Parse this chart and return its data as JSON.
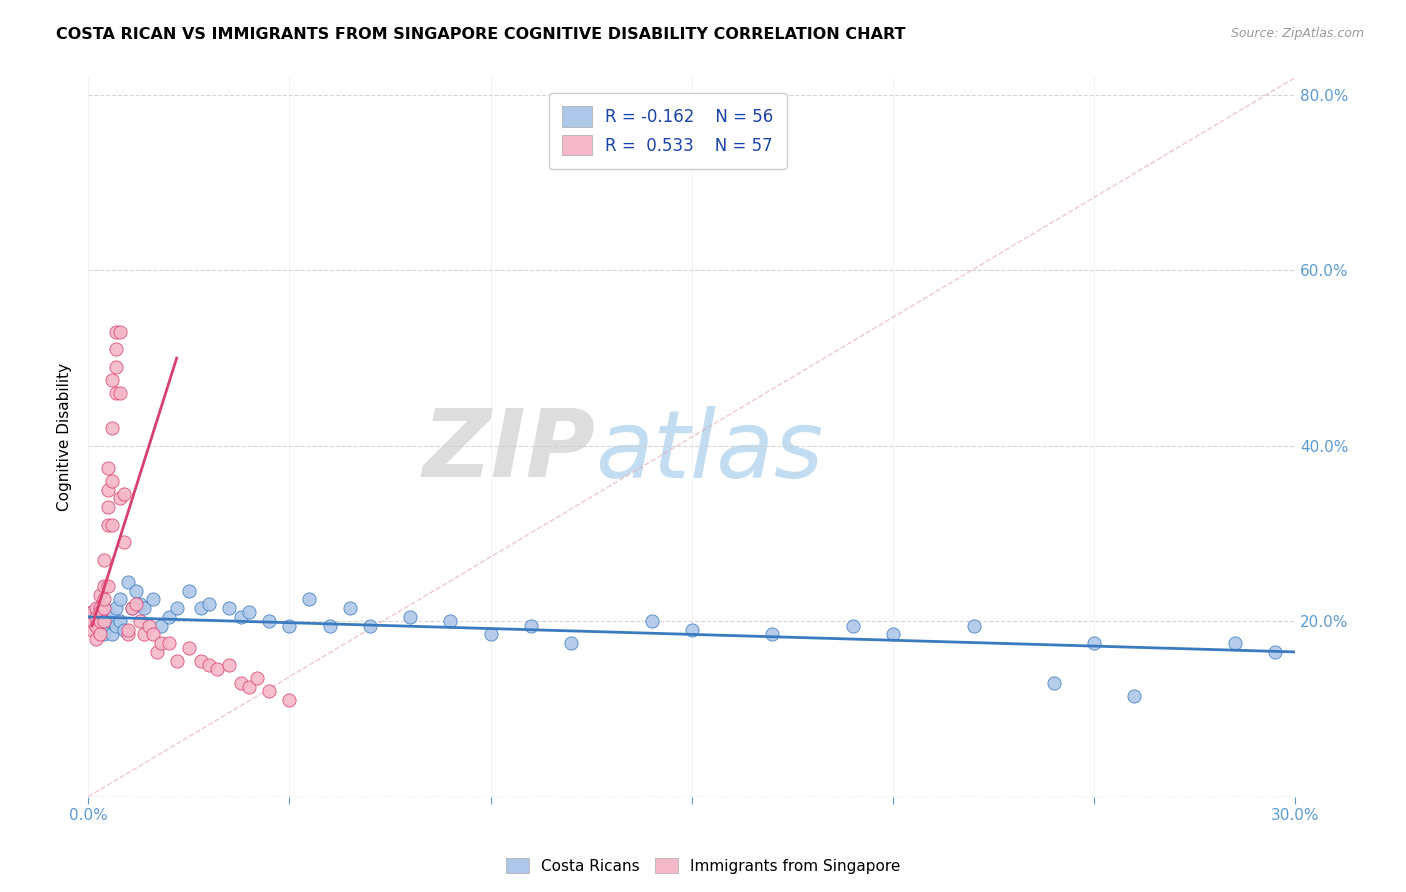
{
  "title": "COSTA RICAN VS IMMIGRANTS FROM SINGAPORE COGNITIVE DISABILITY CORRELATION CHART",
  "source": "Source: ZipAtlas.com",
  "ylabel": "Cognitive Disability",
  "xmin": 0.0,
  "xmax": 0.3,
  "ymin": 0.0,
  "ymax": 0.82,
  "yticks": [
    0.0,
    0.2,
    0.4,
    0.6,
    0.8
  ],
  "ytick_labels": [
    "",
    "20.0%",
    "40.0%",
    "60.0%",
    "80.0%"
  ],
  "xticks": [
    0.0,
    0.05,
    0.1,
    0.15,
    0.2,
    0.25,
    0.3
  ],
  "xtick_labels": [
    "0.0%",
    "",
    "",
    "",
    "",
    "",
    "30.0%"
  ],
  "blue_color": "#adc8e8",
  "pink_color": "#f5b8c8",
  "blue_line_color": "#3a7abf",
  "pink_line_color": "#d94070",
  "legend_blue_R": "R = -0.162",
  "legend_blue_N": "N = 56",
  "legend_pink_R": "R =  0.533",
  "legend_pink_N": "N = 57",
  "blue_scatter_x": [
    0.001,
    0.002,
    0.002,
    0.003,
    0.003,
    0.003,
    0.004,
    0.004,
    0.004,
    0.005,
    0.005,
    0.005,
    0.006,
    0.006,
    0.007,
    0.007,
    0.008,
    0.008,
    0.009,
    0.01,
    0.011,
    0.012,
    0.013,
    0.014,
    0.016,
    0.018,
    0.02,
    0.022,
    0.025,
    0.028,
    0.03,
    0.035,
    0.038,
    0.04,
    0.045,
    0.05,
    0.055,
    0.06,
    0.065,
    0.07,
    0.08,
    0.09,
    0.1,
    0.11,
    0.12,
    0.14,
    0.15,
    0.17,
    0.19,
    0.2,
    0.22,
    0.24,
    0.25,
    0.26,
    0.285,
    0.295
  ],
  "blue_scatter_y": [
    0.21,
    0.205,
    0.195,
    0.2,
    0.19,
    0.215,
    0.185,
    0.2,
    0.215,
    0.195,
    0.21,
    0.2,
    0.185,
    0.205,
    0.215,
    0.195,
    0.225,
    0.2,
    0.19,
    0.245,
    0.215,
    0.235,
    0.22,
    0.215,
    0.225,
    0.195,
    0.205,
    0.215,
    0.235,
    0.215,
    0.22,
    0.215,
    0.205,
    0.21,
    0.2,
    0.195,
    0.225,
    0.195,
    0.215,
    0.195,
    0.205,
    0.2,
    0.185,
    0.195,
    0.175,
    0.2,
    0.19,
    0.185,
    0.195,
    0.185,
    0.195,
    0.13,
    0.175,
    0.115,
    0.175,
    0.165
  ],
  "pink_scatter_x": [
    0.001,
    0.001,
    0.001,
    0.002,
    0.002,
    0.002,
    0.002,
    0.003,
    0.003,
    0.003,
    0.003,
    0.003,
    0.004,
    0.004,
    0.004,
    0.004,
    0.004,
    0.005,
    0.005,
    0.005,
    0.005,
    0.005,
    0.006,
    0.006,
    0.006,
    0.006,
    0.007,
    0.007,
    0.007,
    0.007,
    0.008,
    0.008,
    0.008,
    0.009,
    0.009,
    0.01,
    0.01,
    0.011,
    0.012,
    0.013,
    0.014,
    0.015,
    0.016,
    0.017,
    0.018,
    0.02,
    0.022,
    0.025,
    0.028,
    0.03,
    0.032,
    0.035,
    0.038,
    0.04,
    0.042,
    0.045,
    0.05
  ],
  "pink_scatter_y": [
    0.19,
    0.2,
    0.21,
    0.18,
    0.195,
    0.205,
    0.215,
    0.185,
    0.2,
    0.215,
    0.21,
    0.23,
    0.2,
    0.215,
    0.225,
    0.24,
    0.27,
    0.24,
    0.31,
    0.33,
    0.35,
    0.375,
    0.31,
    0.36,
    0.42,
    0.475,
    0.46,
    0.49,
    0.51,
    0.53,
    0.34,
    0.46,
    0.53,
    0.29,
    0.345,
    0.185,
    0.19,
    0.215,
    0.22,
    0.2,
    0.185,
    0.195,
    0.185,
    0.165,
    0.175,
    0.175,
    0.155,
    0.17,
    0.155,
    0.15,
    0.145,
    0.15,
    0.13,
    0.125,
    0.135,
    0.12,
    0.11
  ],
  "pink_line_x0": 0.001,
  "pink_line_x1": 0.022,
  "pink_line_y0": 0.195,
  "pink_line_y1": 0.5,
  "blue_line_x0": 0.0,
  "blue_line_x1": 0.3,
  "blue_line_y0": 0.205,
  "blue_line_y1": 0.165,
  "ref_line_x0": 0.0,
  "ref_line_x1": 0.3,
  "ref_line_y0": 0.0,
  "ref_line_y1": 0.82
}
